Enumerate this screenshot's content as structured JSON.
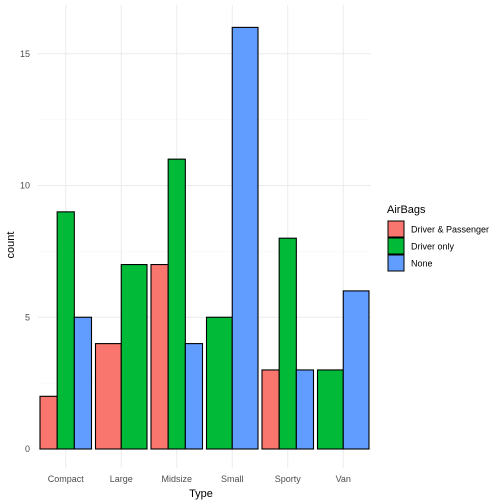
{
  "chart_data": {
    "type": "bar",
    "title": "",
    "xlabel": "Type",
    "ylabel": "count",
    "categories": [
      "Compact",
      "Large",
      "Midsize",
      "Small",
      "Sporty",
      "Van"
    ],
    "series": [
      {
        "name": "Driver & Passenger",
        "color": "#F8766D",
        "values": [
          2,
          4,
          7,
          null,
          3,
          null
        ]
      },
      {
        "name": "Driver only",
        "color": "#00BA38",
        "values": [
          9,
          7,
          11,
          5,
          8,
          3
        ]
      },
      {
        "name": "None",
        "color": "#619CFF",
        "values": [
          5,
          null,
          4,
          16,
          3,
          6
        ]
      }
    ],
    "ylim": [
      0,
      16.8
    ],
    "yticks": [
      "0",
      "5",
      "10",
      "15"
    ],
    "grid": true,
    "legend": {
      "title": "AirBags",
      "position": "right"
    }
  }
}
